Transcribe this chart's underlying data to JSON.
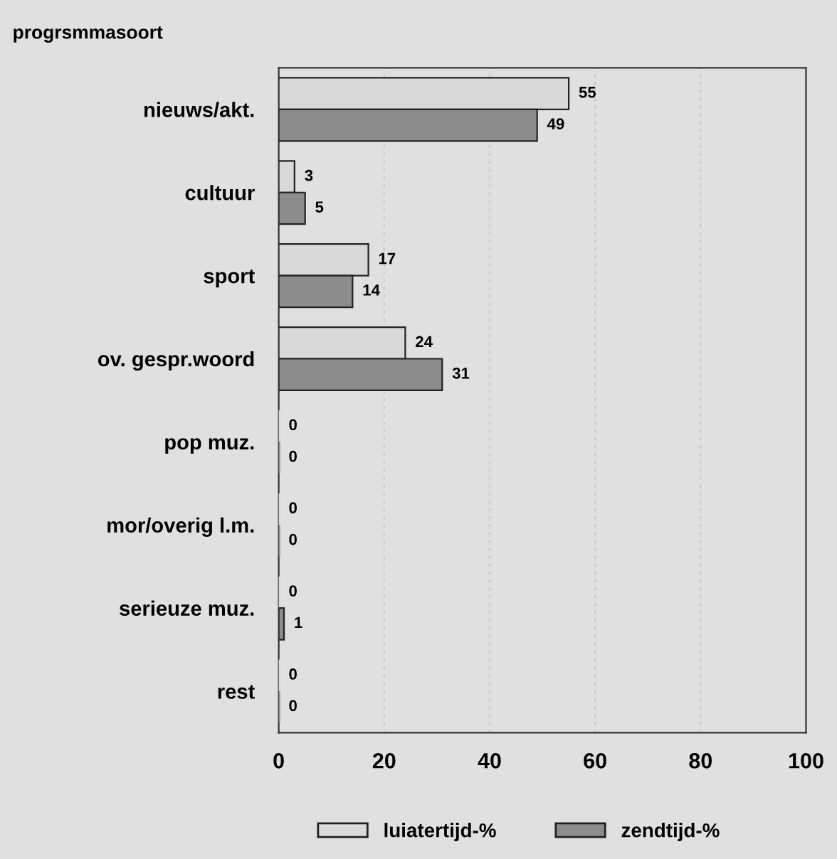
{
  "chart_data": {
    "type": "bar",
    "orientation": "horizontal",
    "title": "progrsmmasoort",
    "categories": [
      "nieuws/akt.",
      "cultuur",
      "sport",
      "ov. gespr.woord",
      "pop muz.",
      "mor/overig l.m.",
      "serieuze muz.",
      "rest"
    ],
    "series": [
      {
        "name": "luiatertijd-%",
        "color": "#d9d9d9",
        "values": [
          55,
          3,
          17,
          24,
          0,
          0,
          0,
          0
        ],
        "value_labels": [
          "55",
          "3",
          "17",
          "24",
          "0",
          "0",
          "0",
          "0"
        ]
      },
      {
        "name": "zendtijd-%",
        "color": "#8c8c8c",
        "values": [
          49,
          5,
          14,
          31,
          0,
          0,
          1,
          0
        ],
        "value_labels": [
          "49",
          "5",
          "14",
          "31",
          "0",
          "0",
          "1",
          "0"
        ]
      }
    ],
    "xlim": [
      0,
      100
    ],
    "xticks": [
      0,
      20,
      40,
      60,
      80,
      100
    ],
    "grid": "x",
    "legend": "bottom"
  }
}
